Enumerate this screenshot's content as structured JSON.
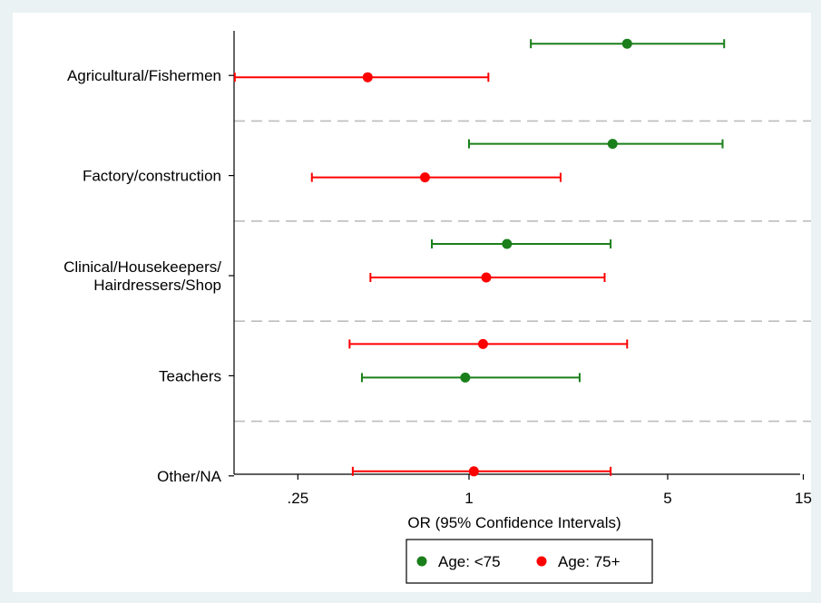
{
  "chart_data": {
    "type": "forest",
    "title": "",
    "xlabel": "OR (95% Confidence Intervals)",
    "ylabel": "",
    "x_scale": "log",
    "x_ticks": [
      {
        "value": 0.25,
        "label": ".25"
      },
      {
        "value": 1,
        "label": "1"
      },
      {
        "value": 5,
        "label": "5"
      },
      {
        "value": 15,
        "label": "15"
      }
    ],
    "xlim": [
      0.14,
      15.5
    ],
    "grid": false,
    "legend_position": "bottom-center",
    "groups": [
      {
        "label_lines": [
          "Agricultural/Fishermen"
        ],
        "estimates": [
          {
            "series": "Age: <75",
            "or": 3.6,
            "lower": 1.65,
            "upper": 7.9
          },
          {
            "series": "Age: 75+",
            "or": 0.44,
            "lower": 0.15,
            "upper": 1.17
          }
        ]
      },
      {
        "label_lines": [
          "Factory/construction"
        ],
        "estimates": [
          {
            "series": "Age: <75",
            "or": 3.2,
            "lower": 1.0,
            "upper": 7.8
          },
          {
            "series": "Age: 75+",
            "or": 0.7,
            "lower": 0.28,
            "upper": 2.1
          }
        ]
      },
      {
        "label_lines": [
          "Clinical/Housekeepers/",
          "Hairdressers/Shop"
        ],
        "estimates": [
          {
            "series": "Age: <75",
            "or": 1.36,
            "lower": 0.74,
            "upper": 3.15
          },
          {
            "series": "Age: 75+",
            "or": 1.15,
            "lower": 0.45,
            "upper": 3.0
          }
        ]
      },
      {
        "label_lines": [
          "Teachers"
        ],
        "estimates": [
          {
            "series": "Age: 75+",
            "or": 1.12,
            "lower": 0.38,
            "upper": 3.6
          },
          {
            "series": "Age: <75",
            "or": 0.97,
            "lower": 0.42,
            "upper": 2.45
          }
        ]
      },
      {
        "label_lines": [
          "Other/NA"
        ],
        "estimates": [
          {
            "series": "Age: 75+",
            "or": 1.04,
            "lower": 0.39,
            "upper": 3.15
          }
        ]
      }
    ],
    "series": [
      {
        "name": "Age: <75",
        "color": "#1a7f1a"
      },
      {
        "name": "Age: 75+",
        "color": "#ff0000"
      }
    ]
  }
}
